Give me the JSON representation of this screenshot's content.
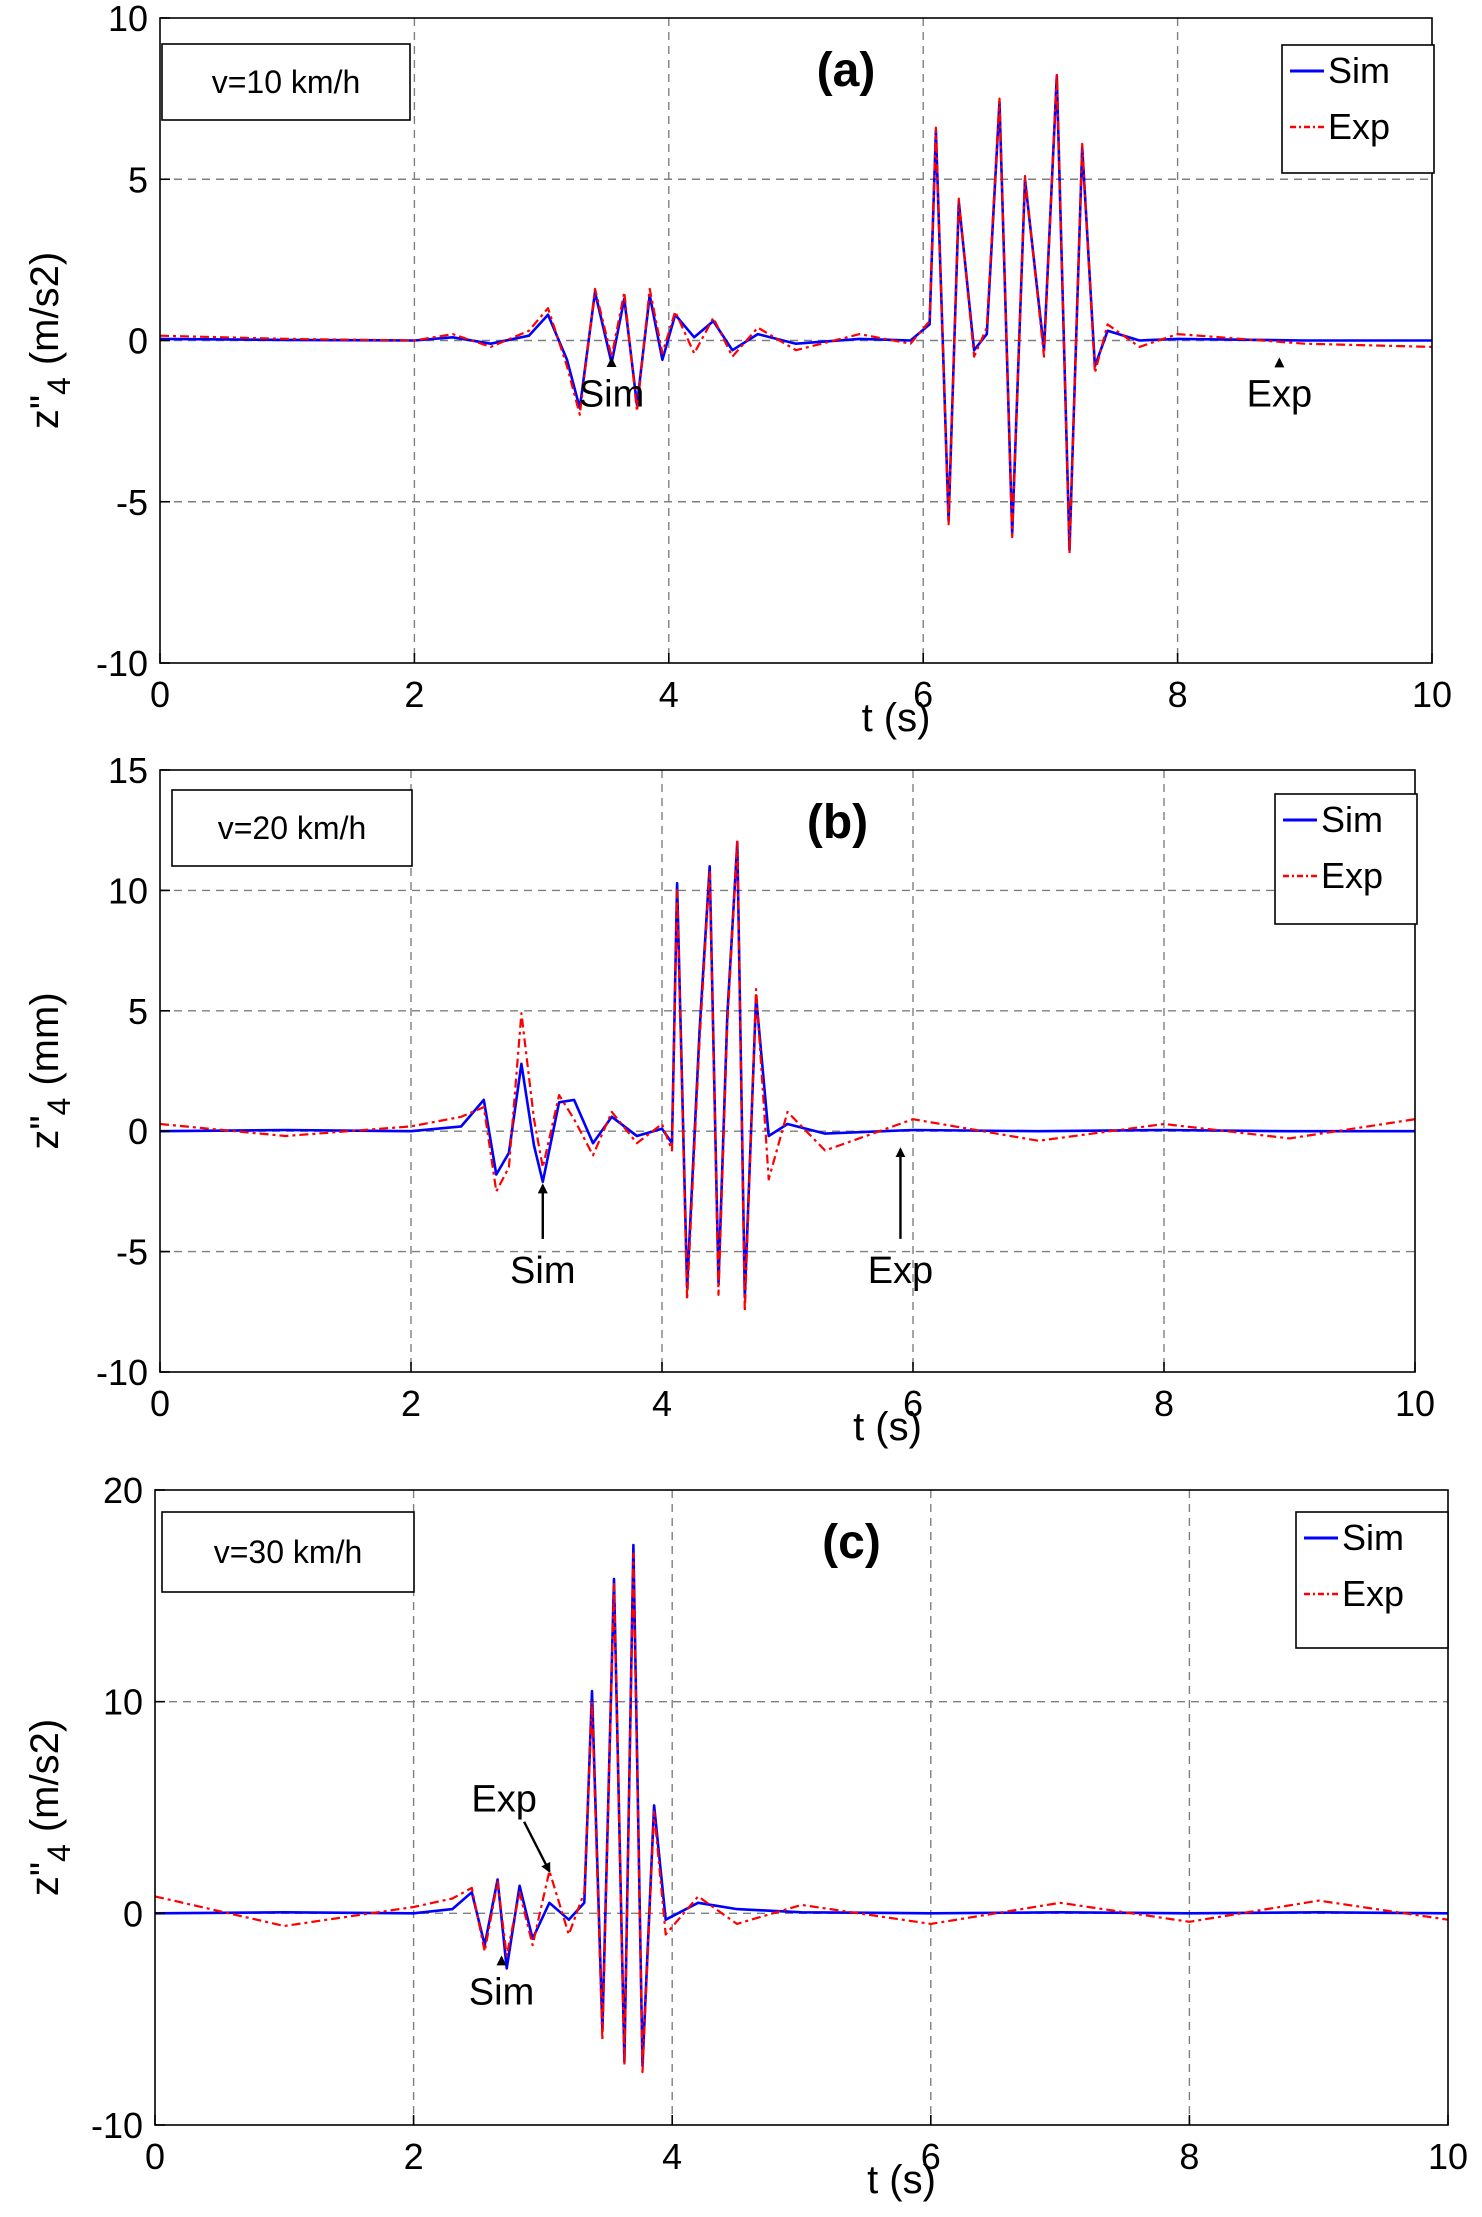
{
  "chart_data": [
    {
      "type": "line",
      "title": "(a)",
      "speed_label": "v=10 km/h",
      "xlabel": "t (s)",
      "ylabel_main": "z\"",
      "ylabel_sub": "4",
      "ylabel_unit": "(m/s2)",
      "xlim": [
        0,
        10
      ],
      "ylim": [
        -10,
        10
      ],
      "xticks": [
        0,
        2,
        4,
        6,
        8,
        10
      ],
      "yticks": [
        -10,
        -5,
        0,
        5,
        10
      ],
      "grid": true,
      "legend_position": "top-right",
      "series": [
        {
          "name": "Sim",
          "color": "#0000ff",
          "style": "solid",
          "points": [
            [
              0,
              0.05
            ],
            [
              1,
              0.02
            ],
            [
              2,
              0.0
            ],
            [
              2.3,
              0.1
            ],
            [
              2.6,
              -0.1
            ],
            [
              2.9,
              0.15
            ],
            [
              3.05,
              0.8
            ],
            [
              3.2,
              -0.6
            ],
            [
              3.3,
              -2.1
            ],
            [
              3.42,
              1.5
            ],
            [
              3.55,
              -0.7
            ],
            [
              3.65,
              1.3
            ],
            [
              3.75,
              -2.0
            ],
            [
              3.85,
              1.4
            ],
            [
              3.95,
              -0.6
            ],
            [
              4.05,
              0.8
            ],
            [
              4.2,
              0.1
            ],
            [
              4.35,
              0.6
            ],
            [
              4.5,
              -0.3
            ],
            [
              4.7,
              0.2
            ],
            [
              5.0,
              -0.1
            ],
            [
              5.5,
              0.05
            ],
            [
              5.9,
              0.0
            ],
            [
              6.05,
              0.5
            ],
            [
              6.1,
              6.5
            ],
            [
              6.2,
              -5.6
            ],
            [
              6.28,
              4.3
            ],
            [
              6.4,
              -0.3
            ],
            [
              6.5,
              0.2
            ],
            [
              6.6,
              7.4
            ],
            [
              6.7,
              -6.0
            ],
            [
              6.8,
              5.0
            ],
            [
              6.95,
              -0.3
            ],
            [
              7.05,
              8.2
            ],
            [
              7.15,
              -6.5
            ],
            [
              7.25,
              6.0
            ],
            [
              7.35,
              -0.8
            ],
            [
              7.45,
              0.3
            ],
            [
              7.7,
              0.0
            ],
            [
              8,
              0.05
            ],
            [
              9,
              0.0
            ],
            [
              10,
              0.0
            ]
          ]
        },
        {
          "name": "Exp",
          "color": "#ff0000",
          "style": "dashdot",
          "points": [
            [
              0,
              0.15
            ],
            [
              1,
              0.05
            ],
            [
              2,
              0.0
            ],
            [
              2.3,
              0.2
            ],
            [
              2.6,
              -0.2
            ],
            [
              2.9,
              0.3
            ],
            [
              3.05,
              1.0
            ],
            [
              3.2,
              -0.8
            ],
            [
              3.3,
              -2.3
            ],
            [
              3.42,
              1.6
            ],
            [
              3.55,
              -0.5
            ],
            [
              3.65,
              1.5
            ],
            [
              3.75,
              -2.2
            ],
            [
              3.85,
              1.6
            ],
            [
              3.95,
              -0.4
            ],
            [
              4.05,
              0.9
            ],
            [
              4.2,
              -0.4
            ],
            [
              4.35,
              0.7
            ],
            [
              4.5,
              -0.5
            ],
            [
              4.7,
              0.4
            ],
            [
              5.0,
              -0.3
            ],
            [
              5.5,
              0.2
            ],
            [
              5.9,
              -0.1
            ],
            [
              6.05,
              0.6
            ],
            [
              6.1,
              6.6
            ],
            [
              6.2,
              -5.7
            ],
            [
              6.28,
              4.4
            ],
            [
              6.4,
              -0.5
            ],
            [
              6.5,
              0.4
            ],
            [
              6.6,
              7.5
            ],
            [
              6.7,
              -6.1
            ],
            [
              6.8,
              5.1
            ],
            [
              6.95,
              -0.5
            ],
            [
              7.05,
              8.3
            ],
            [
              7.15,
              -6.6
            ],
            [
              7.25,
              6.1
            ],
            [
              7.35,
              -1.0
            ],
            [
              7.45,
              0.5
            ],
            [
              7.7,
              -0.2
            ],
            [
              8,
              0.2
            ],
            [
              9,
              -0.1
            ],
            [
              10,
              -0.2
            ]
          ]
        }
      ],
      "annotations": [
        {
          "text": "Sim",
          "arrow_to": [
            3.55,
            -0.7
          ],
          "text_at": [
            3.55,
            -2.05
          ]
        },
        {
          "text": "Exp",
          "arrow_to": [
            8.8,
            -0.4
          ],
          "text_at": [
            8.8,
            -2.05
          ]
        }
      ]
    },
    {
      "type": "line",
      "title": "(b)",
      "speed_label": "v=20 km/h",
      "xlabel": "t (s)",
      "ylabel_main": "z\"",
      "ylabel_sub": "4",
      "ylabel_unit": "(mm)",
      "xlim": [
        0,
        10
      ],
      "ylim": [
        -10,
        15
      ],
      "xticks": [
        0,
        2,
        4,
        6,
        8,
        10
      ],
      "yticks": [
        -10,
        -5,
        0,
        5,
        10,
        15
      ],
      "grid": true,
      "legend_position": "top-right",
      "series": [
        {
          "name": "Sim",
          "color": "#0000ff",
          "style": "solid",
          "points": [
            [
              0,
              0.0
            ],
            [
              1,
              0.05
            ],
            [
              2,
              0.0
            ],
            [
              2.4,
              0.2
            ],
            [
              2.58,
              1.3
            ],
            [
              2.68,
              -1.8
            ],
            [
              2.78,
              -0.9
            ],
            [
              2.88,
              2.8
            ],
            [
              2.98,
              -0.6
            ],
            [
              3.05,
              -2.1
            ],
            [
              3.18,
              1.2
            ],
            [
              3.3,
              1.3
            ],
            [
              3.45,
              -0.5
            ],
            [
              3.6,
              0.6
            ],
            [
              3.8,
              -0.2
            ],
            [
              4.0,
              0.1
            ],
            [
              4.08,
              -0.5
            ],
            [
              4.12,
              10.3
            ],
            [
              4.2,
              -6.5
            ],
            [
              4.3,
              4.2
            ],
            [
              4.38,
              11.0
            ],
            [
              4.45,
              -6.3
            ],
            [
              4.52,
              4.8
            ],
            [
              4.6,
              12.0
            ],
            [
              4.66,
              -6.9
            ],
            [
              4.75,
              5.6
            ],
            [
              4.85,
              -0.2
            ],
            [
              5.0,
              0.3
            ],
            [
              5.3,
              -0.1
            ],
            [
              6,
              0.05
            ],
            [
              7,
              0.0
            ],
            [
              8,
              0.05
            ],
            [
              9,
              0.0
            ],
            [
              10,
              0.0
            ]
          ]
        },
        {
          "name": "Exp",
          "color": "#ff0000",
          "style": "dashdot",
          "points": [
            [
              0,
              0.3
            ],
            [
              1,
              -0.2
            ],
            [
              2,
              0.2
            ],
            [
              2.4,
              0.6
            ],
            [
              2.58,
              1.0
            ],
            [
              2.68,
              -2.5
            ],
            [
              2.78,
              -1.5
            ],
            [
              2.88,
              4.9
            ],
            [
              2.98,
              0.5
            ],
            [
              3.05,
              -1.5
            ],
            [
              3.18,
              1.5
            ],
            [
              3.3,
              0.5
            ],
            [
              3.45,
              -1.0
            ],
            [
              3.6,
              0.8
            ],
            [
              3.8,
              -0.5
            ],
            [
              4.0,
              0.3
            ],
            [
              4.08,
              -0.8
            ],
            [
              4.12,
              10.0
            ],
            [
              4.2,
              -7.0
            ],
            [
              4.3,
              3.8
            ],
            [
              4.38,
              10.8
            ],
            [
              4.45,
              -6.8
            ],
            [
              4.52,
              4.4
            ],
            [
              4.6,
              12.1
            ],
            [
              4.66,
              -7.5
            ],
            [
              4.75,
              5.9
            ],
            [
              4.85,
              -2.0
            ],
            [
              5.0,
              0.8
            ],
            [
              5.3,
              -0.8
            ],
            [
              6,
              0.5
            ],
            [
              7,
              -0.4
            ],
            [
              8,
              0.3
            ],
            [
              9,
              -0.3
            ],
            [
              10,
              0.5
            ]
          ]
        }
      ],
      "annotations": [
        {
          "text": "Sim",
          "arrow_to": [
            3.05,
            -2.0
          ],
          "text_at": [
            3.05,
            -6.3
          ]
        },
        {
          "text": "Exp",
          "arrow_to": [
            5.9,
            -0.5
          ],
          "text_at": [
            5.9,
            -6.3
          ]
        }
      ]
    },
    {
      "type": "line",
      "title": "(c)",
      "speed_label": "v=30 km/h",
      "xlabel": "t (s)",
      "ylabel_main": "z\"",
      "ylabel_sub": "4",
      "ylabel_unit": "(m/s2)",
      "xlim": [
        0,
        10
      ],
      "ylim": [
        -10,
        20
      ],
      "xticks": [
        0,
        2,
        4,
        6,
        8,
        10
      ],
      "yticks": [
        -10,
        0,
        10,
        20
      ],
      "grid": true,
      "legend_position": "top-right",
      "series": [
        {
          "name": "Sim",
          "color": "#0000ff",
          "style": "solid",
          "points": [
            [
              0,
              0.0
            ],
            [
              1,
              0.05
            ],
            [
              2,
              0.0
            ],
            [
              2.3,
              0.2
            ],
            [
              2.45,
              1.0
            ],
            [
              2.55,
              -1.5
            ],
            [
              2.65,
              1.6
            ],
            [
              2.72,
              -2.6
            ],
            [
              2.82,
              1.3
            ],
            [
              2.92,
              -1.2
            ],
            [
              3.05,
              0.5
            ],
            [
              3.2,
              -0.3
            ],
            [
              3.32,
              0.5
            ],
            [
              3.38,
              10.5
            ],
            [
              3.46,
              -5.5
            ],
            [
              3.55,
              15.8
            ],
            [
              3.63,
              -7.0
            ],
            [
              3.7,
              17.4
            ],
            [
              3.77,
              -7.2
            ],
            [
              3.86,
              5.1
            ],
            [
              3.95,
              -0.3
            ],
            [
              4.2,
              0.5
            ],
            [
              4.5,
              0.2
            ],
            [
              5,
              0.05
            ],
            [
              6,
              0.0
            ],
            [
              7,
              0.05
            ],
            [
              8,
              0.0
            ],
            [
              9,
              0.05
            ],
            [
              10,
              0.0
            ]
          ]
        },
        {
          "name": "Exp",
          "color": "#ff0000",
          "style": "dashdot",
          "points": [
            [
              0,
              0.8
            ],
            [
              1,
              -0.6
            ],
            [
              2,
              0.3
            ],
            [
              2.3,
              0.7
            ],
            [
              2.45,
              1.2
            ],
            [
              2.55,
              -1.8
            ],
            [
              2.65,
              1.5
            ],
            [
              2.72,
              -2.0
            ],
            [
              2.82,
              1.0
            ],
            [
              2.92,
              -1.5
            ],
            [
              3.05,
              2.0
            ],
            [
              3.2,
              -1.0
            ],
            [
              3.32,
              1.0
            ],
            [
              3.38,
              10.0
            ],
            [
              3.46,
              -6.0
            ],
            [
              3.55,
              15.6
            ],
            [
              3.63,
              -7.2
            ],
            [
              3.7,
              17.0
            ],
            [
              3.77,
              -7.5
            ],
            [
              3.86,
              4.8
            ],
            [
              3.95,
              -1.0
            ],
            [
              4.2,
              0.8
            ],
            [
              4.5,
              -0.5
            ],
            [
              5,
              0.4
            ],
            [
              6,
              -0.5
            ],
            [
              7,
              0.5
            ],
            [
              8,
              -0.4
            ],
            [
              9,
              0.6
            ],
            [
              10,
              -0.3
            ]
          ]
        }
      ],
      "annotations": [
        {
          "text": "Sim",
          "arrow_to": [
            2.68,
            -1.8
          ],
          "text_at": [
            2.68,
            -4.3
          ]
        },
        {
          "text": "Exp",
          "arrow_to": [
            3.05,
            1.8
          ],
          "text_at": [
            2.7,
            4.8
          ]
        }
      ]
    }
  ]
}
